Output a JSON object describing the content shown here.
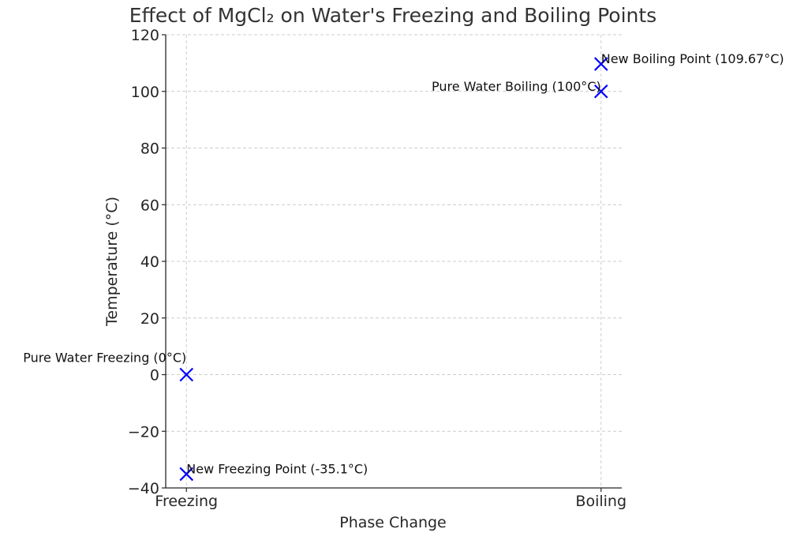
{
  "chart_data": {
    "type": "scatter",
    "title": "Effect of MgCl₂ on Water's Freezing and Boiling Points",
    "xlabel": "Phase Change",
    "ylabel": "Temperature (°C)",
    "categories": [
      "Freezing",
      "Boiling"
    ],
    "ylim": [
      -40,
      120
    ],
    "yticks": [
      "−40",
      "−20",
      "0",
      "20",
      "40",
      "60",
      "80",
      "100",
      "120"
    ],
    "ytick_values": [
      -40,
      -20,
      0,
      20,
      40,
      60,
      80,
      100,
      120
    ],
    "grid": true,
    "marker": "x",
    "marker_color": "#0000ff",
    "points": [
      {
        "category": "Freezing",
        "value": 0,
        "label": "Pure Water Freezing (0°C)",
        "align": "right"
      },
      {
        "category": "Freezing",
        "value": -35.1,
        "label": "New Freezing Point (-35.1°C)",
        "align": "left"
      },
      {
        "category": "Boiling",
        "value": 100,
        "label": "Pure Water Boiling (100°C)",
        "align": "right"
      },
      {
        "category": "Boiling",
        "value": 109.67,
        "label": "New Boiling Point (109.67°C)",
        "align": "left"
      }
    ]
  }
}
